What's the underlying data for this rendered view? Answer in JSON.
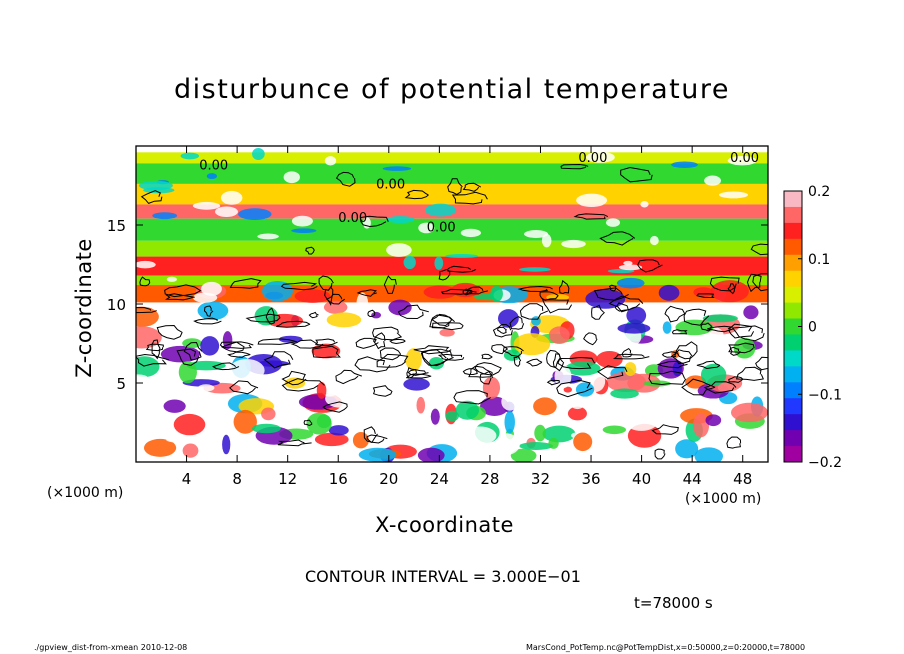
{
  "chart_data": {
    "type": "heatmap",
    "title": "disturbunce of potential temperature",
    "xlabel": "X-coordinate",
    "ylabel": "Z-coordinate",
    "x_unit_left": "(×1000 m)",
    "x_unit_right": "(×1000 m)",
    "xlim": [
      0,
      50
    ],
    "ylim": [
      0,
      20
    ],
    "x_ticks": [
      4,
      8,
      12,
      16,
      20,
      24,
      28,
      32,
      36,
      40,
      44,
      48
    ],
    "y_ticks": [
      5,
      10,
      15
    ],
    "colorbar": {
      "range": [
        -0.2,
        0.2
      ],
      "tick_values": [
        0.2,
        0.1,
        0,
        -0.1,
        -0.2
      ],
      "tick_labels": [
        "0.2",
        "0.1",
        "0",
        "−0.1",
        "−0.2"
      ],
      "colors": [
        "#f9b9c4",
        "#ff6666",
        "#ff2020",
        "#ff5a00",
        "#ffa000",
        "#ffd200",
        "#d8f000",
        "#90e800",
        "#30d830",
        "#00d070",
        "#00d8c8",
        "#00b0f0",
        "#0080ff",
        "#2038ff",
        "#3010d0",
        "#7000b0",
        "#a000a0"
      ]
    },
    "contour_labels": [
      "0.00",
      "0.00",
      "0.00",
      "0.00",
      "0.00",
      "0.00"
    ],
    "horizontal_bands": [
      {
        "z_range": [
          18.9,
          19.6
        ],
        "value": 0.05
      },
      {
        "z_range": [
          17.6,
          18.9
        ],
        "value": 0.0
      },
      {
        "z_range": [
          16.3,
          17.6
        ],
        "value": 0.08
      },
      {
        "z_range": [
          15.4,
          16.3
        ],
        "value": 0.17
      },
      {
        "z_range": [
          14.0,
          15.4
        ],
        "value": 0.0
      },
      {
        "z_range": [
          13.0,
          14.0
        ],
        "value": 0.03
      },
      {
        "z_range": [
          11.8,
          13.0
        ],
        "value": 0.14
      },
      {
        "z_range": [
          11.2,
          11.8
        ],
        "value": 0.02
      },
      {
        "z_range": [
          10.1,
          11.2
        ],
        "value": 0.12
      }
    ],
    "contour_interval_text": "CONTOUR INTERVAL = 3.000E−01",
    "time_text": "t=78000 s"
  },
  "footer": {
    "left": "./gpview_dist-from-xmean  2010-12-08",
    "right": "MarsCond_PotTemp.nc@PotTempDist,x=0:50000,z=0:20000,t=78000"
  }
}
